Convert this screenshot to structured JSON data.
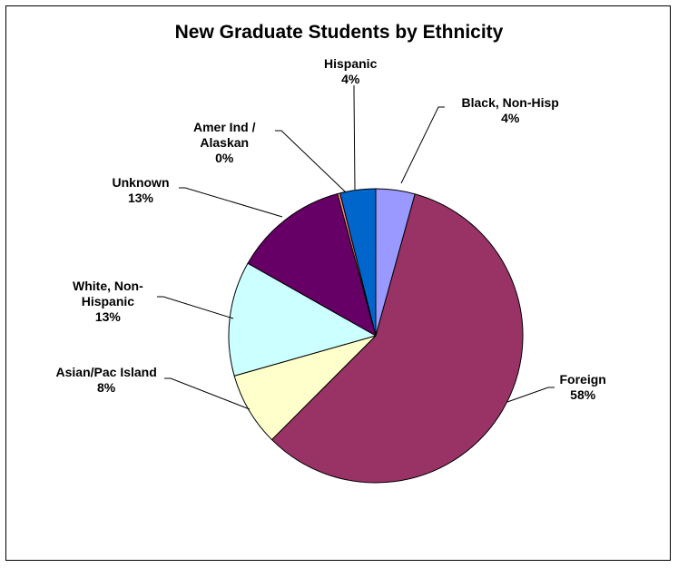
{
  "chart_data": {
    "type": "pie",
    "title": "New Graduate Students by Ethnicity",
    "legend": "none",
    "start_angle_deg": 0,
    "direction": "clockwise",
    "slices": [
      {
        "label_lines": [
          "Black, Non-Hisp"
        ],
        "percent_label": "4%",
        "value": 4.3,
        "color": "#9999ff"
      },
      {
        "label_lines": [
          "Foreign"
        ],
        "percent_label": "58%",
        "value": 58.2,
        "color": "#993366"
      },
      {
        "label_lines": [
          "Asian/Pac Island"
        ],
        "percent_label": "8%",
        "value": 8.1,
        "color": "#ffffcc"
      },
      {
        "label_lines": [
          "White, Non-",
          "Hispanic"
        ],
        "percent_label": "13%",
        "value": 12.6,
        "color": "#ccffff"
      },
      {
        "label_lines": [
          "Unknown"
        ],
        "percent_label": "13%",
        "value": 12.6,
        "color": "#660066"
      },
      {
        "label_lines": [
          "Amer Ind /",
          "Alaskan"
        ],
        "percent_label": "0%",
        "value": 0.3,
        "color": "#ff8080"
      },
      {
        "label_lines": [
          "Hispanic"
        ],
        "percent_label": "4%",
        "value": 3.9,
        "color": "#0066cc"
      }
    ]
  }
}
